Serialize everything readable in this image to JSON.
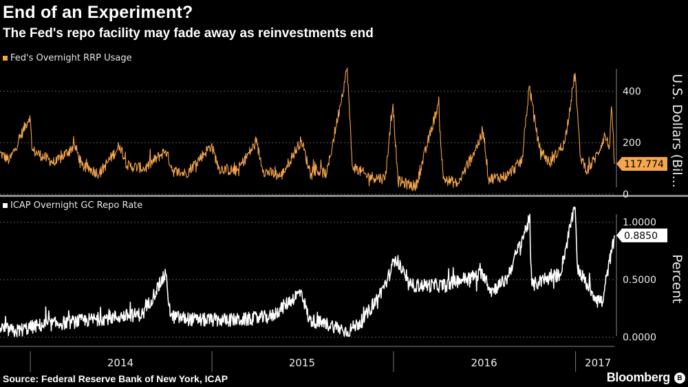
{
  "title": "End of an Experiment?",
  "subtitle": "The Fed's repo facility may fade away as reinvestments end",
  "source": "Source: Federal Reserve Bank of New York, ICAP",
  "brand": "Bloomberg",
  "colors": {
    "top_series": "#f5a54c",
    "bottom_series": "#ffffff",
    "background": "#000000",
    "grid": "#555555"
  },
  "chart_data": [
    {
      "type": "line",
      "title": "",
      "series": [
        {
          "name": "Fed's Overnight RRP Usage",
          "color": "#f5a54c"
        }
      ],
      "ylabel": "U.S. Dollars (Bil...",
      "ylim": [
        0,
        500
      ],
      "yticks": [
        0,
        200,
        400
      ],
      "last_value": 117.774,
      "last_value_label": "117.774",
      "x_range": [
        "2013-11-01",
        "2017-03-20"
      ],
      "x_tick_labels": [
        "2014",
        "2015",
        "2016",
        "2017"
      ],
      "grid": true,
      "knots": [
        [
          "2013-11-01",
          160
        ],
        [
          "2013-11-20",
          130
        ],
        [
          "2013-12-02",
          180
        ],
        [
          "2013-12-31",
          305
        ],
        [
          "2014-01-05",
          170
        ],
        [
          "2014-02-01",
          140
        ],
        [
          "2014-02-20",
          120
        ],
        [
          "2014-03-31",
          190
        ],
        [
          "2014-04-15",
          110
        ],
        [
          "2014-05-20",
          80
        ],
        [
          "2014-06-30",
          190
        ],
        [
          "2014-07-15",
          110
        ],
        [
          "2014-08-20",
          100
        ],
        [
          "2014-09-30",
          170
        ],
        [
          "2014-10-15",
          90
        ],
        [
          "2014-11-10",
          80
        ],
        [
          "2014-12-31",
          190
        ],
        [
          "2015-01-15",
          100
        ],
        [
          "2015-02-20",
          90
        ],
        [
          "2015-03-31",
          200
        ],
        [
          "2015-04-15",
          90
        ],
        [
          "2015-05-20",
          70
        ],
        [
          "2015-06-30",
          210
        ],
        [
          "2015-07-15",
          100
        ],
        [
          "2015-08-20",
          80
        ],
        [
          "2015-09-30",
          490
        ],
        [
          "2015-10-10",
          110
        ],
        [
          "2015-11-10",
          70
        ],
        [
          "2015-12-15",
          60
        ],
        [
          "2015-12-31",
          350
        ],
        [
          "2016-01-10",
          50
        ],
        [
          "2016-02-15",
          30
        ],
        [
          "2016-03-31",
          350
        ],
        [
          "2016-04-10",
          60
        ],
        [
          "2016-05-10",
          40
        ],
        [
          "2016-06-30",
          240
        ],
        [
          "2016-07-10",
          60
        ],
        [
          "2016-08-15",
          70
        ],
        [
          "2016-09-15",
          130
        ],
        [
          "2016-09-30",
          420
        ],
        [
          "2016-10-20",
          180
        ],
        [
          "2016-11-10",
          120
        ],
        [
          "2016-12-10",
          200
        ],
        [
          "2016-12-31",
          470
        ],
        [
          "2017-01-10",
          150
        ],
        [
          "2017-01-25",
          90
        ],
        [
          "2017-02-15",
          160
        ],
        [
          "2017-03-01",
          230
        ],
        [
          "2017-03-10",
          180
        ],
        [
          "2017-03-14",
          340
        ],
        [
          "2017-03-20",
          117.774
        ]
      ]
    },
    {
      "type": "line",
      "title": "",
      "series": [
        {
          "name": "ICAP Overnight GC Repo Rate",
          "color": "#ffffff"
        }
      ],
      "ylabel": "Percent",
      "ylim": [
        -0.05,
        1.1
      ],
      "yticks": [
        0.0,
        0.5,
        1.0
      ],
      "ytick_labels": [
        "0.0000",
        "0.5000",
        "1.0000"
      ],
      "last_value": 0.885,
      "last_value_label": "0.8850",
      "x_range": [
        "2013-11-01",
        "2017-03-20"
      ],
      "x_tick_labels": [
        "2014",
        "2015",
        "2016",
        "2017"
      ],
      "grid": true,
      "knots": [
        [
          "2013-11-01",
          0.08
        ],
        [
          "2013-12-01",
          0.05
        ],
        [
          "2014-01-15",
          0.1
        ],
        [
          "2014-03-01",
          0.12
        ],
        [
          "2014-05-01",
          0.15
        ],
        [
          "2014-07-01",
          0.18
        ],
        [
          "2014-08-15",
          0.2
        ],
        [
          "2014-09-30",
          0.55
        ],
        [
          "2014-10-10",
          0.18
        ],
        [
          "2014-12-01",
          0.15
        ],
        [
          "2015-01-15",
          0.15
        ],
        [
          "2015-03-01",
          0.15
        ],
        [
          "2015-05-01",
          0.18
        ],
        [
          "2015-06-30",
          0.4
        ],
        [
          "2015-07-15",
          0.15
        ],
        [
          "2015-09-01",
          0.1
        ],
        [
          "2015-10-01",
          0.05
        ],
        [
          "2015-11-01",
          0.15
        ],
        [
          "2015-12-01",
          0.35
        ],
        [
          "2015-12-20",
          0.5
        ],
        [
          "2016-01-05",
          0.7
        ],
        [
          "2016-02-01",
          0.45
        ],
        [
          "2016-03-01",
          0.45
        ],
        [
          "2016-04-15",
          0.45
        ],
        [
          "2016-05-15",
          0.5
        ],
        [
          "2016-06-30",
          0.55
        ],
        [
          "2016-07-15",
          0.4
        ],
        [
          "2016-08-15",
          0.5
        ],
        [
          "2016-09-30",
          1.02
        ],
        [
          "2016-10-05",
          0.45
        ],
        [
          "2016-11-01",
          0.5
        ],
        [
          "2016-12-01",
          0.55
        ],
        [
          "2016-12-31",
          1.15
        ],
        [
          "2017-01-05",
          0.6
        ],
        [
          "2017-01-25",
          0.45
        ],
        [
          "2017-02-10",
          0.35
        ],
        [
          "2017-02-25",
          0.3
        ],
        [
          "2017-03-05",
          0.55
        ],
        [
          "2017-03-15",
          0.75
        ],
        [
          "2017-03-20",
          0.885
        ]
      ]
    }
  ]
}
